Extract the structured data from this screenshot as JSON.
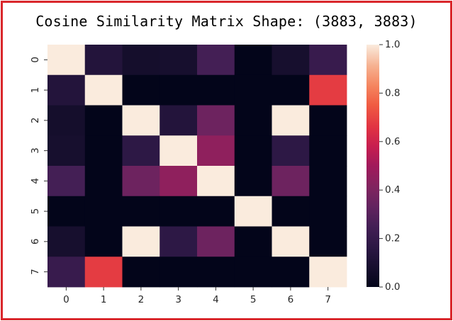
{
  "title": "Cosine Similarity Matrix Shape: (3883, 3883)",
  "chart_data": {
    "type": "heatmap",
    "title": "Cosine Similarity Matrix Shape: (3883, 3883)",
    "xlabel": "",
    "ylabel": "",
    "x_tick_labels": [
      "0",
      "1",
      "2",
      "3",
      "4",
      "5",
      "6",
      "7"
    ],
    "y_tick_labels": [
      "0",
      "1",
      "2",
      "3",
      "4",
      "5",
      "6",
      "7"
    ],
    "matrix": [
      [
        1.0,
        0.13,
        0.07,
        0.08,
        0.25,
        0.0,
        0.08,
        0.21
      ],
      [
        0.13,
        1.0,
        0.0,
        0.0,
        0.0,
        0.0,
        0.0,
        0.68
      ],
      [
        0.07,
        0.0,
        1.0,
        0.13,
        0.36,
        0.0,
        1.0,
        0.0
      ],
      [
        0.08,
        0.0,
        0.17,
        1.0,
        0.45,
        0.0,
        0.17,
        0.0
      ],
      [
        0.25,
        0.0,
        0.36,
        0.45,
        1.0,
        0.0,
        0.36,
        0.0
      ],
      [
        0.0,
        0.0,
        0.0,
        0.0,
        0.0,
        1.0,
        0.0,
        0.0
      ],
      [
        0.08,
        0.0,
        1.0,
        0.17,
        0.36,
        0.0,
        1.0,
        0.0
      ],
      [
        0.21,
        0.68,
        0.0,
        0.0,
        0.0,
        0.0,
        0.0,
        1.0
      ]
    ],
    "colormap": "rocket",
    "colorbar": {
      "range": [
        0.0,
        1.0
      ],
      "tick_labels": [
        "0.0",
        "0.2",
        "0.4",
        "0.6",
        "0.8",
        "1.0"
      ],
      "tick_values": [
        0.0,
        0.2,
        0.4,
        0.6,
        0.8,
        1.0
      ]
    }
  }
}
